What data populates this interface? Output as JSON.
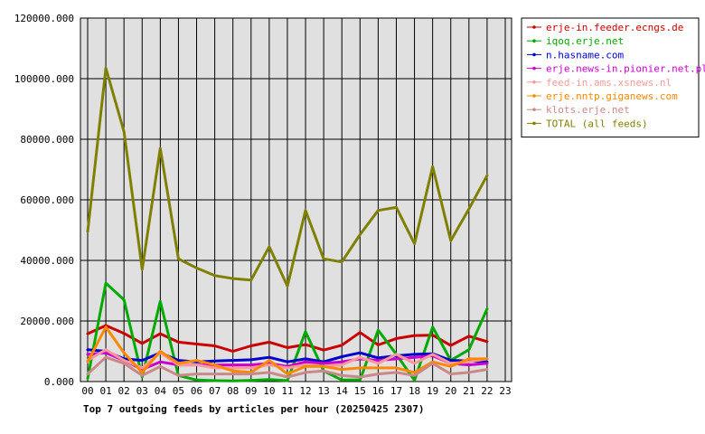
{
  "chart_data": {
    "type": "line",
    "title": "Top 7 outgoing feeds by articles per hour (20250425 2307)",
    "xlabel": "",
    "ylabel": "",
    "categories": [
      "00",
      "01",
      "02",
      "03",
      "04",
      "05",
      "06",
      "07",
      "08",
      "09",
      "10",
      "11",
      "12",
      "13",
      "14",
      "15",
      "16",
      "17",
      "18",
      "19",
      "20",
      "21",
      "22",
      "23"
    ],
    "ylim": [
      0,
      120000
    ],
    "yticks": [
      "0.000",
      "20000.000",
      "40000.000",
      "60000.000",
      "80000.000",
      "100000.000",
      "120000.000"
    ],
    "ytick_values": [
      0,
      20000,
      40000,
      60000,
      80000,
      100000,
      120000
    ],
    "grid": true,
    "legend_position": "right",
    "plot_background": "#e0e0e0",
    "series": [
      {
        "name": "erje-in.feeder.ecngs.de",
        "color": "#cc0000",
        "values": [
          15800,
          18500,
          15900,
          12600,
          15800,
          13000,
          12400,
          11800,
          10000,
          11800,
          13000,
          11200,
          12200,
          10400,
          12000,
          16200,
          12100,
          14200,
          15200,
          15300,
          11900,
          15000,
          13200,
          null
        ]
      },
      {
        "name": "iqoq.erje.net",
        "color": "#00aa00",
        "values": [
          1000,
          32500,
          27000,
          1500,
          26500,
          2000,
          500,
          300,
          200,
          400,
          700,
          300,
          16500,
          3500,
          500,
          500,
          17000,
          9000,
          400,
          18000,
          7000,
          10500,
          24000,
          null
        ]
      },
      {
        "name": "n.hasname.com",
        "color": "#0000cc",
        "values": [
          10500,
          10000,
          7500,
          7000,
          9500,
          7000,
          6500,
          6800,
          7000,
          7200,
          8000,
          6500,
          7500,
          6500,
          8200,
          9500,
          7800,
          8500,
          9000,
          9200,
          7000,
          6800,
          6500,
          null
        ]
      },
      {
        "name": "erje.news-in.pionier.net.pl",
        "color": "#cc00cc",
        "values": [
          9000,
          9500,
          7000,
          4000,
          6500,
          5500,
          5500,
          5500,
          5500,
          5500,
          6000,
          5000,
          6500,
          6000,
          6500,
          7500,
          7000,
          7500,
          8000,
          8500,
          6000,
          5500,
          6000,
          null
        ]
      },
      {
        "name": "feed-in.ams.xsnews.nl",
        "color": "#ff9999",
        "values": [
          7000,
          10500,
          7000,
          4500,
          9500,
          5500,
          5500,
          4500,
          4500,
          4500,
          5500,
          4500,
          5500,
          5000,
          5500,
          8000,
          6000,
          9000,
          6000,
          9000,
          6000,
          6500,
          7500,
          null
        ]
      },
      {
        "name": "erje.nntp.giganews.com",
        "color": "#ff8800",
        "values": [
          6500,
          18000,
          9500,
          3000,
          10000,
          6000,
          7000,
          5500,
          3500,
          3000,
          7000,
          2500,
          5000,
          5000,
          4000,
          4500,
          4500,
          4500,
          3000,
          6500,
          5000,
          7500,
          7500,
          null
        ]
      },
      {
        "name": "klots.erje.net",
        "color": "#cc8888",
        "values": [
          2500,
          8000,
          6000,
          2000,
          5000,
          2000,
          2500,
          2500,
          2500,
          2500,
          3000,
          1500,
          3000,
          3500,
          2000,
          1500,
          2500,
          3000,
          2000,
          6000,
          2500,
          3000,
          4000,
          null
        ]
      },
      {
        "name": "TOTAL (all feeds)",
        "color": "#808000",
        "values": [
          49500,
          103500,
          82500,
          37000,
          77000,
          40500,
          37500,
          35000,
          34000,
          33500,
          44500,
          31500,
          56500,
          40500,
          39500,
          48500,
          56500,
          57500,
          45500,
          71000,
          46500,
          57000,
          68000,
          null
        ]
      }
    ]
  }
}
